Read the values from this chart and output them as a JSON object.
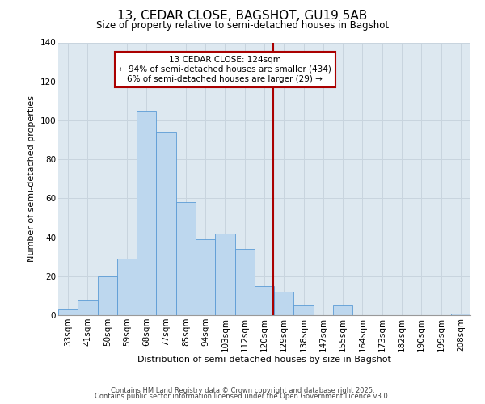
{
  "title": "13, CEDAR CLOSE, BAGSHOT, GU19 5AB",
  "subtitle": "Size of property relative to semi-detached houses in Bagshot",
  "xlabel": "Distribution of semi-detached houses by size in Bagshot",
  "ylabel": "Number of semi-detached properties",
  "bar_labels": [
    "33sqm",
    "41sqm",
    "50sqm",
    "59sqm",
    "68sqm",
    "77sqm",
    "85sqm",
    "94sqm",
    "103sqm",
    "112sqm",
    "120sqm",
    "129sqm",
    "138sqm",
    "147sqm",
    "155sqm",
    "164sqm",
    "173sqm",
    "182sqm",
    "190sqm",
    "199sqm",
    "208sqm"
  ],
  "bar_values": [
    3,
    8,
    20,
    29,
    105,
    94,
    58,
    39,
    42,
    34,
    15,
    12,
    5,
    0,
    5,
    0,
    0,
    0,
    0,
    0,
    1
  ],
  "bar_color": "#bdd7ee",
  "bar_edge_color": "#5b9bd5",
  "background_color": "#ffffff",
  "plot_bg_color": "#dde8f0",
  "grid_color": "#c8d4de",
  "vline_color": "#aa0000",
  "annotation_text": "13 CEDAR CLOSE: 124sqm\n← 94% of semi-detached houses are smaller (434)\n6% of semi-detached houses are larger (29) →",
  "annotation_box_edgecolor": "#aa0000",
  "footer_line1": "Contains HM Land Registry data © Crown copyright and database right 2025.",
  "footer_line2": "Contains public sector information licensed under the Open Government Licence v3.0.",
  "ylim": [
    0,
    140
  ],
  "title_fontsize": 11,
  "subtitle_fontsize": 8.5,
  "axis_label_fontsize": 8,
  "tick_fontsize": 7.5,
  "footer_fontsize": 6,
  "annot_fontsize": 7.5,
  "vline_pos": 10.44
}
